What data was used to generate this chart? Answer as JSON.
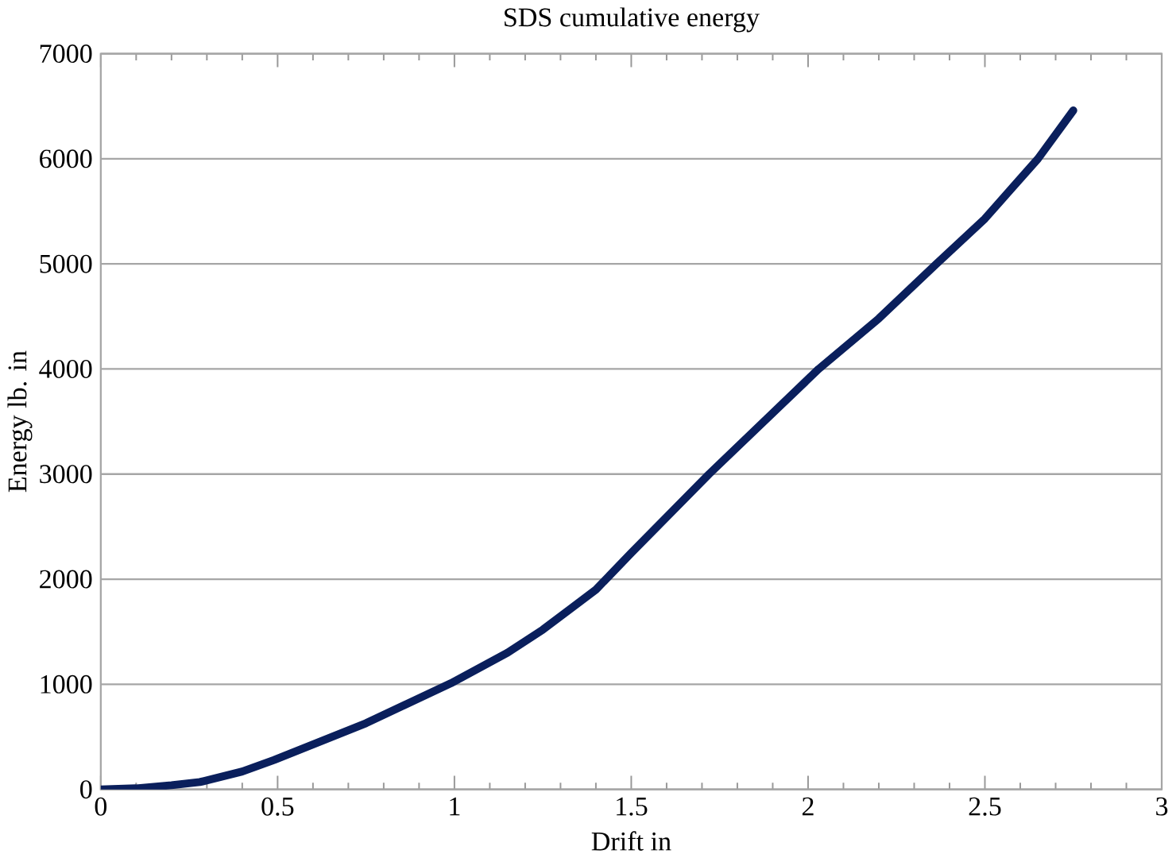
{
  "chart_data": {
    "type": "line",
    "title": "SDS cumulative energy",
    "xlabel": "Drift in",
    "ylabel": "Energy lb. in",
    "x": [
      0,
      0.1,
      0.2,
      0.28,
      0.4,
      0.49,
      0.75,
      0.99,
      1.15,
      1.25,
      1.4,
      1.5,
      1.72,
      2.03,
      2.2,
      2.36,
      2.5,
      2.65,
      2.75
    ],
    "values": [
      0,
      10,
      40,
      70,
      170,
      280,
      630,
      1010,
      1300,
      1520,
      1900,
      2250,
      3000,
      4000,
      4480,
      4990,
      5430,
      6000,
      6460
    ],
    "color": "#0a1f5c",
    "marker": "none",
    "line_style": "solid",
    "grid": "y",
    "xlim": [
      0,
      3
    ],
    "ylim": [
      0,
      7000
    ],
    "xticks": [
      0,
      0.5,
      1,
      1.5,
      2,
      2.5,
      3
    ],
    "yticks": [
      0,
      1000,
      2000,
      3000,
      4000,
      5000,
      6000,
      7000
    ]
  }
}
